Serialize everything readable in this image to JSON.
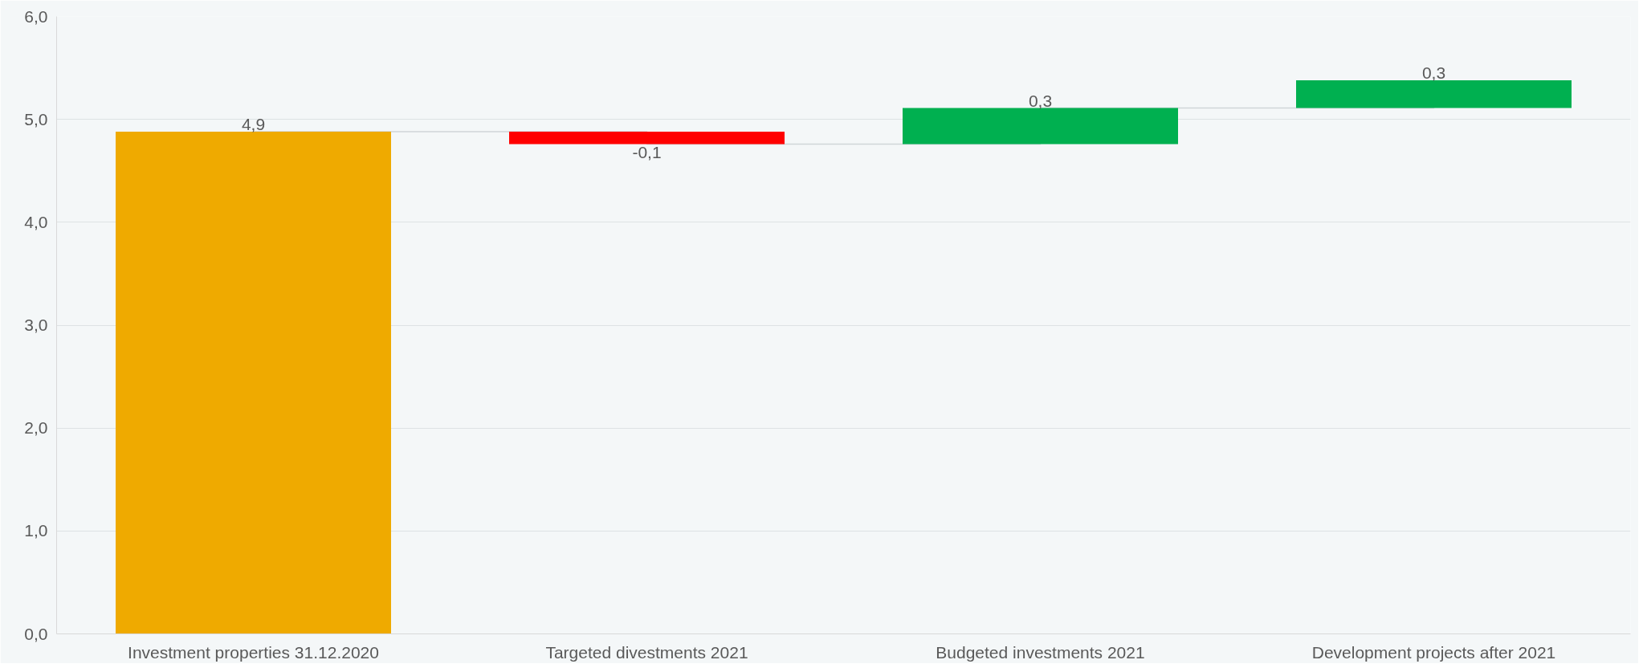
{
  "chart_data": {
    "type": "bar",
    "categories": [
      "Investment properties 31.12.2020",
      "Targeted divestments 2021",
      "Budgeted investments 2021",
      "Development projects after 2021"
    ],
    "values": [
      4.88,
      -0.12,
      0.35,
      0.27
    ],
    "base": [
      0,
      4.88,
      4.76,
      5.11
    ],
    "colors": [
      "#efaa00",
      "#ff0000",
      "#00b050",
      "#00b050"
    ],
    "value_labels": [
      "4,9",
      "-0,1",
      "0,3",
      "0,3"
    ],
    "ylim": [
      0,
      6
    ],
    "yticks": [
      {
        "value": 0,
        "label": "0,0"
      },
      {
        "value": 1,
        "label": "1,0"
      },
      {
        "value": 2,
        "label": "2,0"
      },
      {
        "value": 3,
        "label": "3,0"
      },
      {
        "value": 4,
        "label": "4,0"
      },
      {
        "value": 5,
        "label": "5,0"
      },
      {
        "value": 6,
        "label": "6,0"
      }
    ],
    "series": [
      {
        "type": "step",
        "color": "#d0d5d8",
        "values": [
          4.88,
          4.76,
          5.11,
          5.38
        ]
      }
    ],
    "grid": "y"
  }
}
